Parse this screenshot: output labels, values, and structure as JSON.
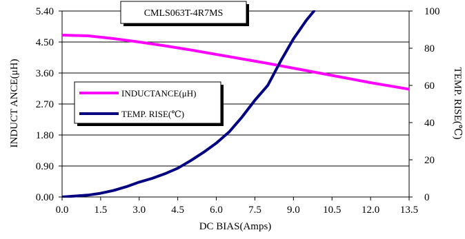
{
  "chart_data": {
    "type": "line",
    "title": "CMLS063T-4R7MS",
    "xlabel": "DC BIAS(Amps)",
    "ylabel": "INDUCT ANCE(μH)",
    "y2label": "TEMP. RISE(℃)",
    "xlim": [
      0,
      13.5
    ],
    "ylim": [
      0,
      5.4
    ],
    "y2lim": [
      0,
      100
    ],
    "x_ticks": [
      "0.0",
      "1.5",
      "3.0",
      "4.5",
      "6.0",
      "7.5",
      "9.0",
      "10.5",
      "12.0",
      "13.5"
    ],
    "y_ticks": [
      "0.00",
      "0.90",
      "1.80",
      "2.70",
      "3.60",
      "4.50",
      "5.40"
    ],
    "y2_ticks": [
      "0",
      "20",
      "40",
      "60",
      "80",
      "100"
    ],
    "grid": "horizontal",
    "legend_position": "left-middle",
    "series": [
      {
        "name": "INDUCTANCE(μH)",
        "axis": "left",
        "color": "#ff00ff",
        "x": [
          0,
          1,
          2,
          3,
          4,
          5,
          6,
          7,
          8,
          9,
          10,
          11,
          12,
          13.5
        ],
        "y": [
          4.7,
          4.68,
          4.6,
          4.5,
          4.39,
          4.27,
          4.14,
          4.01,
          3.88,
          3.74,
          3.6,
          3.46,
          3.32,
          3.13
        ]
      },
      {
        "name": "TEMP. RISE(℃)",
        "axis": "right",
        "color": "#000080",
        "x": [
          0,
          0.5,
          1,
          1.5,
          2,
          2.5,
          3,
          3.5,
          4,
          4.5,
          5,
          5.5,
          6,
          6.5,
          7,
          7.5,
          8,
          8.5,
          9,
          9.5,
          9.8
        ],
        "y": [
          0,
          0.5,
          1,
          2,
          3.5,
          5.5,
          8,
          10,
          12.5,
          15.5,
          19.5,
          24,
          29,
          35,
          43,
          52,
          60,
          73,
          85,
          95,
          100
        ]
      }
    ]
  }
}
